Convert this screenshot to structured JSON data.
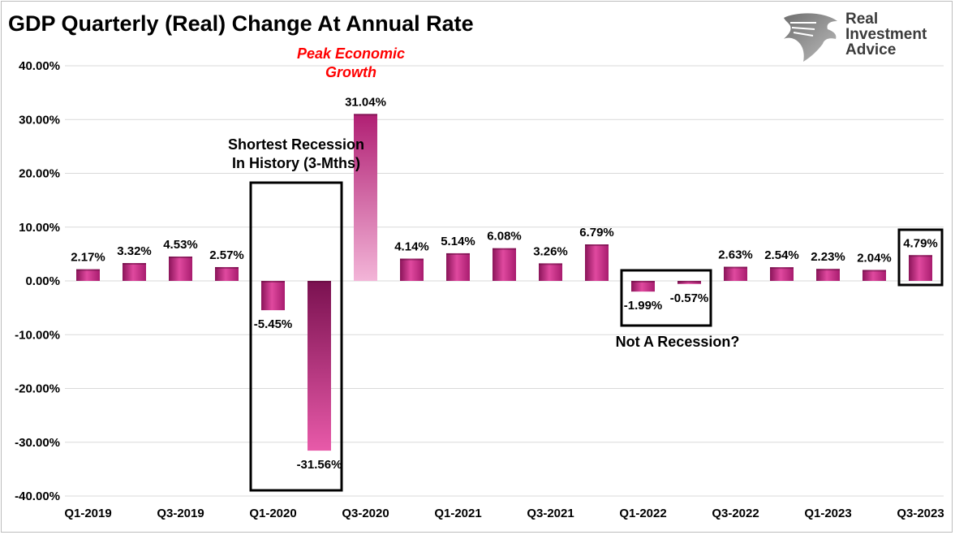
{
  "chart_data": {
    "type": "bar",
    "title": "GDP Quarterly (Real) Change At Annual Rate",
    "categories": [
      "Q1-2019",
      "Q2-2019",
      "Q3-2019",
      "Q4-2019",
      "Q1-2020",
      "Q2-2020",
      "Q3-2020",
      "Q4-2020",
      "Q1-2021",
      "Q2-2021",
      "Q3-2021",
      "Q4-2021",
      "Q1-2022",
      "Q2-2022",
      "Q3-2022",
      "Q4-2022",
      "Q1-2023",
      "Q2-2023",
      "Q3-2023"
    ],
    "x_tick_labels": [
      "Q1-2019",
      "",
      "Q3-2019",
      "",
      "Q1-2020",
      "",
      "Q3-2020",
      "",
      "Q1-2021",
      "",
      "Q3-2021",
      "",
      "Q1-2022",
      "",
      "Q3-2022",
      "",
      "Q1-2023",
      "",
      "Q3-2023"
    ],
    "values": [
      2.17,
      3.32,
      4.53,
      2.57,
      -5.45,
      -31.56,
      31.04,
      4.14,
      5.14,
      6.08,
      3.26,
      6.79,
      -1.99,
      -0.57,
      2.63,
      2.54,
      2.23,
      2.04,
      4.79
    ],
    "data_labels": [
      "2.17%",
      "3.32%",
      "4.53%",
      "2.57%",
      "-5.45%",
      "-31.56%",
      "31.04%",
      "4.14%",
      "5.14%",
      "6.08%",
      "3.26%",
      "6.79%",
      "-1.99%",
      "-0.57%",
      "2.63%",
      "2.54%",
      "2.23%",
      "2.04%",
      "4.79%"
    ],
    "y_tick_values": [
      40,
      30,
      20,
      10,
      0,
      -10,
      -20,
      -30,
      -40
    ],
    "y_tick_labels": [
      "40.00%",
      "30.00%",
      "20.00%",
      "10.00%",
      "0.00%",
      "-10.00%",
      "-20.00%",
      "-30.00%",
      "-40.00%"
    ],
    "ylim": [
      -40,
      40
    ],
    "xlabel": "",
    "ylabel": "",
    "grid": "horizontal",
    "legend": "none",
    "bar_color": "#d6338f",
    "annotations": [
      {
        "text_lines": [
          "Peak Economic",
          "Growth"
        ],
        "color": "#ff0000",
        "near": "Q3-2020"
      },
      {
        "text_lines": [
          "Shortest Recession",
          "In History (3-Mths)"
        ],
        "color": "#000000",
        "boxed_categories": [
          "Q1-2020",
          "Q2-2020"
        ]
      },
      {
        "text_lines": [
          "Not A Recession?"
        ],
        "color": "#000000",
        "boxed_categories": [
          "Q1-2022",
          "Q2-2022"
        ]
      },
      {
        "text_lines": [],
        "color": "#000000",
        "boxed_categories": [
          "Q3-2023"
        ]
      }
    ]
  },
  "logo": {
    "lines": [
      "Real",
      "Investment",
      "Advice"
    ],
    "icon": "eagle-head-icon"
  }
}
